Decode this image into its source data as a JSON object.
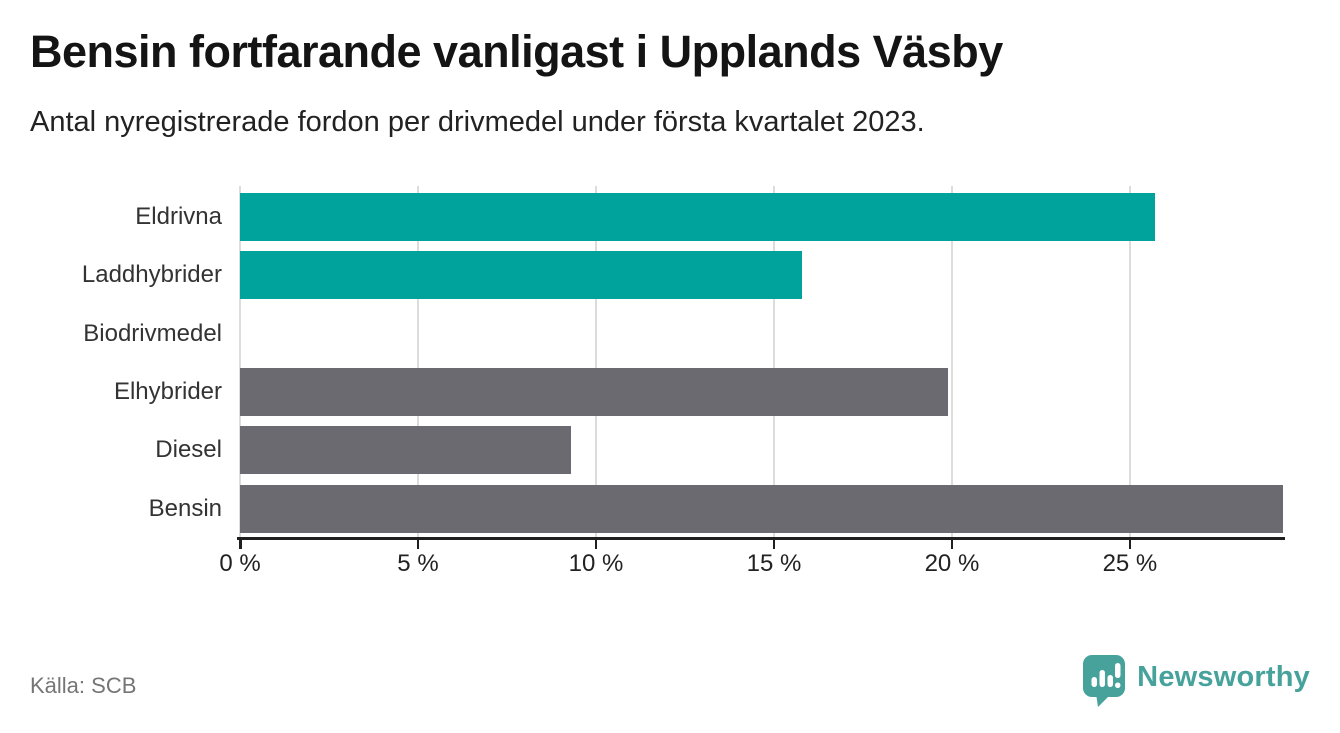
{
  "chart_data": {
    "type": "bar",
    "orientation": "horizontal",
    "title": "Bensin fortfarande vanligast i Upplands Väsby",
    "subtitle": "Antal nyregistrerade fordon per drivmedel under första kvartalet 2023.",
    "categories": [
      "Eldrivna",
      "Laddhybrider",
      "Biodrivmedel",
      "Elhybrider",
      "Diesel",
      "Bensin"
    ],
    "values": [
      25.7,
      15.8,
      0,
      19.9,
      9.3,
      29.3
    ],
    "unit": "%",
    "bar_colors": [
      "#00a39c",
      "#00a39c",
      "#00a39c",
      "#6a6a70",
      "#6a6a70",
      "#6a6a70"
    ],
    "xlabel": "",
    "ylabel": "",
    "xlim": [
      0,
      29.3
    ],
    "x_ticks": [
      0,
      5,
      10,
      15,
      20,
      25
    ],
    "x_tick_labels": [
      "0 %",
      "5 %",
      "10 %",
      "15 %",
      "20 %",
      "25 %"
    ],
    "grid": "vertical-gridlines-only",
    "legend": "none"
  },
  "footer": {
    "source": "Källa: SCB",
    "brand": "Newsworthy"
  },
  "colors": {
    "accent_teal": "#00a39c",
    "bar_gray": "#6a6a70",
    "grid": "#dcdcdc",
    "axis": "#1f1f1f",
    "title_text": "#141414",
    "muted_text": "#757575",
    "logo_teal": "#46a29b"
  }
}
